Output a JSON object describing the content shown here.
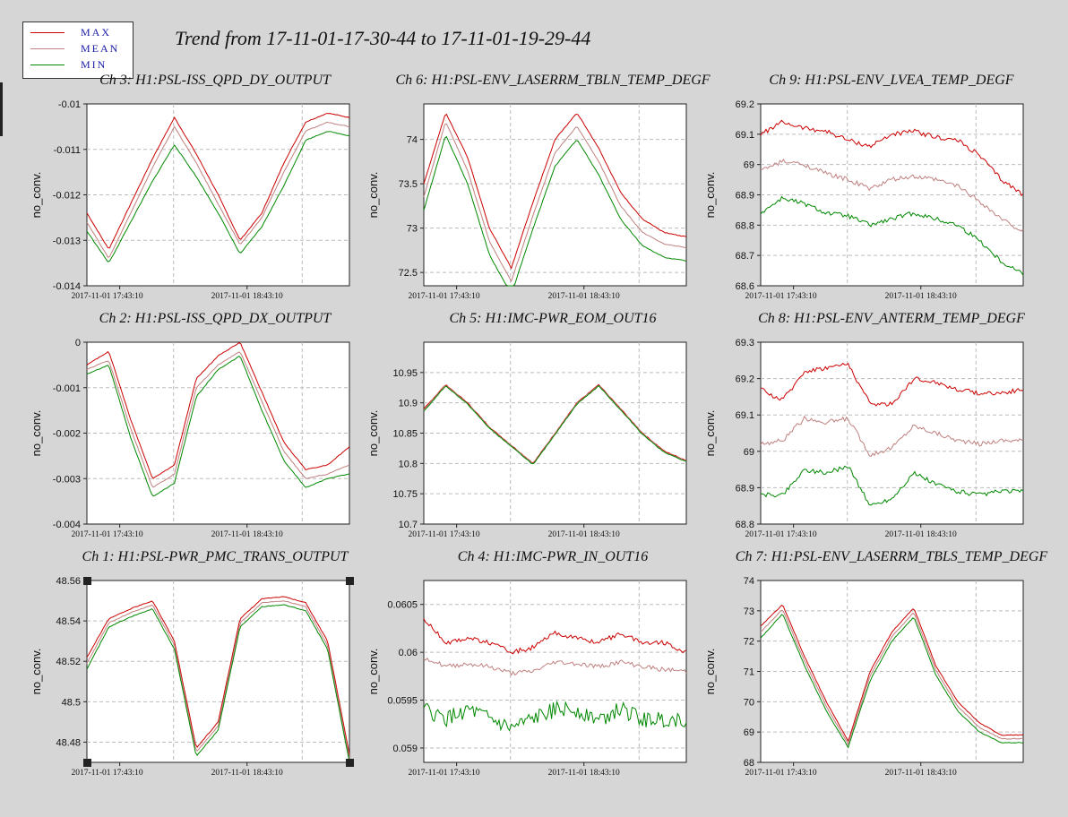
{
  "page": {
    "title": "Trend from 17-11-01-17-30-44 to 17-11-01-19-29-44"
  },
  "legend": {
    "items": [
      {
        "label": "MAX",
        "color": "#cc0000"
      },
      {
        "label": "MEAN",
        "color": "#c08080"
      },
      {
        "label": "MIN",
        "color": "#008800"
      }
    ]
  },
  "chart_data": [
    {
      "type": "line",
      "title": "Ch 3: H1:PSL-ISS_QPD_DY_OUTPUT",
      "ylabel": "no_conv.",
      "xticks": [
        "2017-11-01 17:43:10",
        "2017-11-01 18:43:10"
      ],
      "yticks": [
        "-0.01",
        "-0.011",
        "-0.012",
        "-0.013",
        "-0.014"
      ],
      "ylim": [
        -0.014,
        -0.01
      ],
      "x": [
        0,
        10,
        20,
        30,
        40,
        50,
        60,
        70,
        80,
        90,
        100,
        110,
        120
      ],
      "series": [
        {
          "name": "MAX",
          "values": [
            -0.0124,
            -0.0132,
            -0.0122,
            -0.0112,
            -0.0103,
            -0.0111,
            -0.012,
            -0.013,
            -0.0124,
            -0.0113,
            -0.0104,
            -0.0102,
            -0.0103
          ]
        },
        {
          "name": "MEAN",
          "values": [
            -0.0126,
            -0.0134,
            -0.0124,
            -0.0114,
            -0.0105,
            -0.0113,
            -0.0122,
            -0.0131,
            -0.0125,
            -0.0115,
            -0.0106,
            -0.0104,
            -0.0105
          ]
        },
        {
          "name": "MIN",
          "values": [
            -0.0128,
            -0.0135,
            -0.0126,
            -0.0117,
            -0.0109,
            -0.0116,
            -0.0124,
            -0.0133,
            -0.0127,
            -0.0118,
            -0.0108,
            -0.0106,
            -0.0107
          ]
        }
      ]
    },
    {
      "type": "line",
      "title": "Ch 6: H1:PSL-ENV_LASERRM_TBLN_TEMP_DEGF",
      "ylabel": "no_conv.",
      "xticks": [
        "2017-11-01 17:43:10",
        "2017-11-01 18:43:10"
      ],
      "yticks": [
        "74",
        "73.5",
        "73",
        "72.5"
      ],
      "ylim": [
        72.35,
        74.4
      ],
      "x": [
        0,
        10,
        20,
        30,
        40,
        50,
        60,
        70,
        80,
        90,
        100,
        110,
        120
      ],
      "series": [
        {
          "name": "MAX",
          "values": [
            73.5,
            74.3,
            73.8,
            73.0,
            72.55,
            73.3,
            74.0,
            74.3,
            73.9,
            73.4,
            73.1,
            72.95,
            72.9
          ]
        },
        {
          "name": "MEAN",
          "values": [
            73.35,
            74.2,
            73.65,
            72.85,
            72.4,
            73.15,
            73.85,
            74.15,
            73.75,
            73.25,
            72.95,
            72.82,
            72.78
          ]
        },
        {
          "name": "MIN",
          "values": [
            73.2,
            74.05,
            73.5,
            72.7,
            72.25,
            73.0,
            73.7,
            74.0,
            73.6,
            73.1,
            72.8,
            72.67,
            72.63
          ]
        }
      ]
    },
    {
      "type": "line",
      "title": "Ch 9: H1:PSL-ENV_LVEA_TEMP_DEGF",
      "ylabel": "no_conv.",
      "xticks": [
        "2017-11-01 17:43:10",
        "2017-11-01 18:43:10"
      ],
      "yticks": [
        "69.2",
        "69.1",
        "69",
        "68.9",
        "68.8",
        "68.7",
        "68.6"
      ],
      "ylim": [
        68.6,
        69.2
      ],
      "x": [
        0,
        10,
        20,
        30,
        40,
        50,
        60,
        70,
        80,
        90,
        100,
        110,
        120
      ],
      "series": [
        {
          "name": "MAX",
          "values": [
            69.1,
            69.14,
            69.12,
            69.11,
            69.08,
            69.06,
            69.1,
            69.11,
            69.09,
            69.08,
            69.03,
            68.95,
            68.9
          ]
        },
        {
          "name": "MEAN",
          "values": [
            68.98,
            69.01,
            69.0,
            68.97,
            68.95,
            68.92,
            68.95,
            68.96,
            68.95,
            68.93,
            68.88,
            68.82,
            68.78
          ]
        },
        {
          "name": "MIN",
          "values": [
            68.84,
            68.89,
            68.87,
            68.84,
            68.83,
            68.8,
            68.82,
            68.84,
            68.82,
            68.8,
            68.75,
            68.68,
            68.64
          ]
        }
      ]
    },
    {
      "type": "line",
      "title": "Ch 2: H1:PSL-ISS_QPD_DX_OUTPUT",
      "ylabel": "no_conv.",
      "xticks": [
        "2017-11-01 17:43:10",
        "2017-11-01 18:43:10"
      ],
      "yticks": [
        "0",
        "-0.001",
        "-0.002",
        "-0.003",
        "-0.004"
      ],
      "ylim": [
        -0.004,
        0
      ],
      "x": [
        0,
        10,
        20,
        30,
        40,
        50,
        60,
        70,
        80,
        90,
        100,
        110,
        120
      ],
      "series": [
        {
          "name": "MAX",
          "values": [
            -0.0005,
            -0.0002,
            -0.0017,
            -0.003,
            -0.0027,
            -0.0008,
            -0.0003,
            0.0,
            -0.0011,
            -0.0022,
            -0.0028,
            -0.0027,
            -0.0023
          ]
        },
        {
          "name": "MEAN",
          "values": [
            -0.0006,
            -0.0004,
            -0.0019,
            -0.0032,
            -0.0029,
            -0.001,
            -0.0005,
            -0.0002,
            -0.0013,
            -0.0024,
            -0.003,
            -0.0029,
            -0.0027
          ]
        },
        {
          "name": "MIN",
          "values": [
            -0.0007,
            -0.0005,
            -0.0021,
            -0.0034,
            -0.0031,
            -0.0012,
            -0.0006,
            -0.0003,
            -0.0015,
            -0.0026,
            -0.0032,
            -0.003,
            -0.0029
          ]
        }
      ]
    },
    {
      "type": "line",
      "title": "Ch 5: H1:IMC-PWR_EOM_OUT16",
      "ylabel": "no_conv.",
      "xticks": [
        "2017-11-01 17:43:10",
        "2017-11-01 18:43:10"
      ],
      "yticks": [
        "10.95",
        "10.9",
        "10.85",
        "10.8",
        "10.75",
        "10.7"
      ],
      "ylim": [
        10.7,
        11.0
      ],
      "x": [
        0,
        10,
        20,
        30,
        40,
        50,
        60,
        70,
        80,
        90,
        100,
        110,
        120
      ],
      "series": [
        {
          "name": "MAX",
          "values": [
            10.89,
            10.93,
            10.9,
            10.86,
            10.83,
            10.8,
            10.85,
            10.9,
            10.93,
            10.89,
            10.85,
            10.82,
            10.805
          ]
        },
        {
          "name": "MEAN",
          "values": [
            10.888,
            10.929,
            10.899,
            10.859,
            10.829,
            10.799,
            10.849,
            10.899,
            10.929,
            10.889,
            10.849,
            10.819,
            10.804
          ]
        },
        {
          "name": "MIN",
          "values": [
            10.886,
            10.928,
            10.898,
            10.858,
            10.828,
            10.798,
            10.848,
            10.898,
            10.928,
            10.888,
            10.848,
            10.818,
            10.803
          ]
        }
      ]
    },
    {
      "type": "line",
      "title": "Ch 8: H1:PSL-ENV_ANTERM_TEMP_DEGF",
      "ylabel": "no_conv.",
      "xticks": [
        "2017-11-01 17:43:10",
        "2017-11-01 18:43:10"
      ],
      "yticks": [
        "69.3",
        "69.2",
        "69.1",
        "69",
        "68.9",
        "68.8"
      ],
      "ylim": [
        68.8,
        69.3
      ],
      "x": [
        0,
        10,
        20,
        30,
        40,
        50,
        60,
        70,
        80,
        90,
        100,
        110,
        120
      ],
      "series": [
        {
          "name": "MAX",
          "values": [
            69.17,
            69.14,
            69.22,
            69.23,
            69.24,
            69.13,
            69.13,
            69.2,
            69.19,
            69.17,
            69.16,
            69.16,
            69.17
          ]
        },
        {
          "name": "MEAN",
          "values": [
            69.02,
            69.03,
            69.09,
            69.08,
            69.09,
            68.99,
            69.01,
            69.07,
            69.05,
            69.03,
            69.02,
            69.03,
            69.03
          ]
        },
        {
          "name": "MIN",
          "values": [
            68.88,
            68.88,
            68.95,
            68.94,
            68.96,
            68.85,
            68.87,
            68.94,
            68.91,
            68.89,
            68.88,
            68.89,
            68.89
          ]
        }
      ]
    },
    {
      "type": "line",
      "title": "Ch 1: H1:PSL-PWR_PMC_TRANS_OUTPUT",
      "ylabel": "no_conv.",
      "xticks": [
        "2017-11-01 17:43:10",
        "2017-11-01 18:43:10"
      ],
      "yticks": [
        "48.56",
        "48.54",
        "48.52",
        "48.5",
        "48.48"
      ],
      "ylim": [
        48.47,
        48.56
      ],
      "x": [
        0,
        10,
        20,
        30,
        40,
        50,
        60,
        70,
        80,
        90,
        100,
        110,
        120
      ],
      "series": [
        {
          "name": "MAX",
          "values": [
            48.522,
            48.541,
            48.546,
            48.55,
            48.53,
            48.477,
            48.49,
            48.541,
            48.551,
            48.552,
            48.549,
            48.53,
            48.474
          ]
        },
        {
          "name": "MEAN",
          "values": [
            48.519,
            48.539,
            48.544,
            48.548,
            48.528,
            48.475,
            48.488,
            48.539,
            48.549,
            48.55,
            48.547,
            48.528,
            48.472
          ]
        },
        {
          "name": "MIN",
          "values": [
            48.516,
            48.537,
            48.542,
            48.546,
            48.526,
            48.473,
            48.486,
            48.537,
            48.547,
            48.548,
            48.545,
            48.526,
            48.47
          ]
        }
      ]
    },
    {
      "type": "line",
      "title": "Ch 4: H1:IMC-PWR_IN_OUT16",
      "ylabel": "no_conv.",
      "xticks": [
        "2017-11-01 17:43:10",
        "2017-11-01 18:43:10"
      ],
      "yticks": [
        "0.0605",
        "0.06",
        "0.0595",
        "0.059"
      ],
      "ylim": [
        0.05885,
        0.06075
      ],
      "x": [
        0,
        10,
        20,
        30,
        40,
        50,
        60,
        70,
        80,
        90,
        100,
        110,
        120
      ],
      "series": [
        {
          "name": "MAX",
          "values": [
            0.06035,
            0.0601,
            0.06015,
            0.0601,
            0.06,
            0.06005,
            0.0602,
            0.06015,
            0.0601,
            0.0602,
            0.0601,
            0.0601,
            0.06
          ]
        },
        {
          "name": "MEAN",
          "values": [
            0.05995,
            0.05985,
            0.05988,
            0.05985,
            0.05978,
            0.0598,
            0.0599,
            0.05988,
            0.05985,
            0.0599,
            0.05985,
            0.05982,
            0.0598
          ]
        },
        {
          "name": "MIN",
          "values": [
            0.0594,
            0.0593,
            0.0594,
            0.0593,
            0.0592,
            0.0593,
            0.0594,
            0.0594,
            0.0593,
            0.0594,
            0.0593,
            0.0593,
            0.0593
          ]
        }
      ]
    },
    {
      "type": "line",
      "title": "Ch 7: H1:PSL-ENV_LASERRM_TBLS_TEMP_DEGF",
      "ylabel": "no_conv.",
      "xticks": [
        "2017-11-01 17:43:10",
        "2017-11-01 18:43:10"
      ],
      "yticks": [
        "74",
        "73",
        "72",
        "71",
        "70",
        "69",
        "68"
      ],
      "ylim": [
        68,
        74
      ],
      "x": [
        0,
        10,
        20,
        30,
        40,
        50,
        60,
        70,
        80,
        90,
        100,
        110,
        120
      ],
      "series": [
        {
          "name": "MAX",
          "values": [
            72.5,
            73.2,
            71.5,
            70.0,
            68.7,
            71.0,
            72.3,
            73.1,
            71.2,
            70.0,
            69.3,
            68.9,
            68.9
          ]
        },
        {
          "name": "MEAN",
          "values": [
            72.3,
            73.05,
            71.35,
            69.85,
            68.6,
            70.85,
            72.15,
            72.95,
            71.05,
            69.85,
            69.15,
            68.78,
            68.78
          ]
        },
        {
          "name": "MIN",
          "values": [
            72.1,
            72.9,
            71.2,
            69.7,
            68.5,
            70.7,
            72.0,
            72.8,
            70.9,
            69.7,
            69.0,
            68.65,
            68.65
          ]
        }
      ]
    }
  ]
}
